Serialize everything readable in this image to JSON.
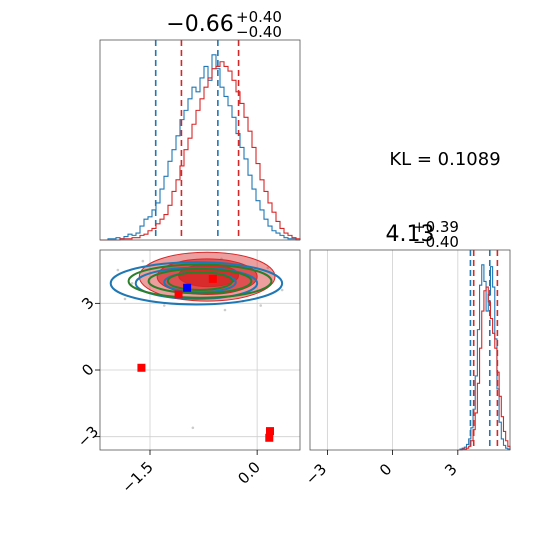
{
  "chart_data": {
    "type": "corner",
    "colors": {
      "blue": "#1f77b4",
      "red": "#d62728",
      "green": "#2a7f2a",
      "grid": "#cfcfcf"
    },
    "kl_label": "KL = 0.1089",
    "panels": [
      {
        "id": "hist_p1",
        "type": "histogram",
        "title": {
          "main": "−0.66",
          "sup": "+0.40",
          "sub": "−0.40"
        },
        "xlim": [
          -2.2,
          0.6
        ],
        "series": [
          {
            "color": "#1f77b4",
            "bin_start": -2.2,
            "bin_width": 0.056,
            "counts": [
              0,
              0,
              1,
              1,
              2,
              1,
              3,
              5,
              4,
              6,
              12,
              18,
              20,
              26,
              32,
              44,
              55,
              68,
              78,
              90,
              104,
              112,
              122,
              132,
              128,
              140,
              150,
              138,
              160,
              148,
              132,
              124,
              116,
              106,
              92,
              80,
              70,
              56,
              44,
              34,
              26,
              18,
              12,
              8,
              6,
              4,
              2,
              1,
              1,
              0
            ],
            "quantiles": [
              -1.42,
              -0.55
            ]
          },
          {
            "color": "#d62728",
            "bin_start": -2.2,
            "bin_width": 0.056,
            "counts": [
              0,
              0,
              0,
              0,
              0,
              1,
              1,
              1,
              2,
              2,
              4,
              5,
              8,
              10,
              14,
              18,
              22,
              30,
              42,
              52,
              64,
              78,
              88,
              100,
              112,
              122,
              132,
              140,
              148,
              150,
              154,
              150,
              146,
              138,
              128,
              118,
              106,
              94,
              80,
              66,
              52,
              42,
              32,
              24,
              16,
              10,
              6,
              4,
              2,
              1
            ],
            "quantiles": [
              -1.06,
              -0.26
            ]
          }
        ]
      },
      {
        "id": "hist_p2",
        "type": "histogram",
        "title": {
          "main": "4.13",
          "sup": "+0.39",
          "sub": "−0.40"
        },
        "xlim": [
          -3.8,
          5.4
        ],
        "series": [
          {
            "color": "#1f77b4",
            "bin_start": 3.0,
            "bin_width": 0.1,
            "counts": [
              0,
              1,
              2,
              3,
              6,
              12,
              24,
              44,
              80,
              130,
              178,
              200,
              182,
              150,
              168,
              198,
              176,
              120,
              66,
              30,
              12,
              5,
              2,
              1
            ],
            "quantiles": [
              3.58,
              4.47
            ]
          },
          {
            "color": "#d62728",
            "bin_start": 3.0,
            "bin_width": 0.1,
            "counts": [
              0,
              0,
              1,
              1,
              2,
              4,
              10,
              22,
              40,
              72,
              110,
              150,
              172,
              176,
              160,
              142,
              126,
              110,
              84,
              58,
              36,
              20,
              10,
              4
            ],
            "quantiles": [
              3.73,
              4.82
            ]
          }
        ]
      },
      {
        "id": "joint",
        "type": "contour_scatter",
        "xlim": [
          -2.2,
          0.6
        ],
        "ylim": [
          -3.6,
          5.4
        ],
        "xticks": [
          -1.5,
          0.0
        ],
        "xtick_labels": [
          "−1.5",
          "0.0"
        ],
        "yticks": [
          -3,
          0,
          3
        ],
        "ytick_labels": [
          "−3",
          "0",
          "3"
        ],
        "red_filled_levels": [
          {
            "cx": -0.7,
            "cy": 4.2,
            "rx": 0.95,
            "ry": 1.1,
            "opacity": 0.45
          },
          {
            "cx": -0.7,
            "cy": 4.2,
            "rx": 0.7,
            "ry": 0.8,
            "opacity": 0.65
          },
          {
            "cx": -0.68,
            "cy": 4.25,
            "rx": 0.42,
            "ry": 0.5,
            "opacity": 0.9
          }
        ],
        "blue_contours": [
          {
            "cx": -0.85,
            "cy": 3.9,
            "rx": 1.2,
            "ry": 0.95
          },
          {
            "cx": -0.85,
            "cy": 3.9,
            "rx": 0.85,
            "ry": 0.7
          },
          {
            "cx": -0.8,
            "cy": 3.95,
            "rx": 0.5,
            "ry": 0.45
          }
        ],
        "green_contours": [
          {
            "cx": -0.8,
            "cy": 4.0,
            "rx": 1.0,
            "ry": 0.75
          },
          {
            "cx": -0.8,
            "cy": 4.0,
            "rx": 0.72,
            "ry": 0.55
          },
          {
            "cx": -0.8,
            "cy": 4.0,
            "rx": 0.45,
            "ry": 0.4
          }
        ],
        "red_markers": [
          [
            -1.62,
            0.1
          ],
          [
            0.18,
            -2.75
          ],
          [
            0.17,
            -3.05
          ],
          [
            -1.1,
            3.4
          ],
          [
            -0.62,
            4.1
          ]
        ],
        "blue_markers": [
          [
            -0.98,
            3.7
          ]
        ],
        "faint_points": [
          [
            -1.95,
            4.5
          ],
          [
            -1.85,
            3.2
          ],
          [
            -1.6,
            4.9
          ],
          [
            -1.3,
            2.9
          ],
          [
            -0.2,
            3.1
          ],
          [
            0.15,
            4.6
          ],
          [
            0.35,
            3.6
          ],
          [
            -0.45,
            2.7
          ],
          [
            -1.75,
            3.9
          ],
          [
            0.05,
            2.9
          ],
          [
            -0.9,
            -2.6
          ],
          [
            -0.5,
            5.0
          ]
        ]
      },
      {
        "id": "hist_p2_axis",
        "xticks": [
          -3,
          0,
          3
        ],
        "xtick_labels": [
          "−3",
          "0",
          "3"
        ]
      }
    ]
  }
}
